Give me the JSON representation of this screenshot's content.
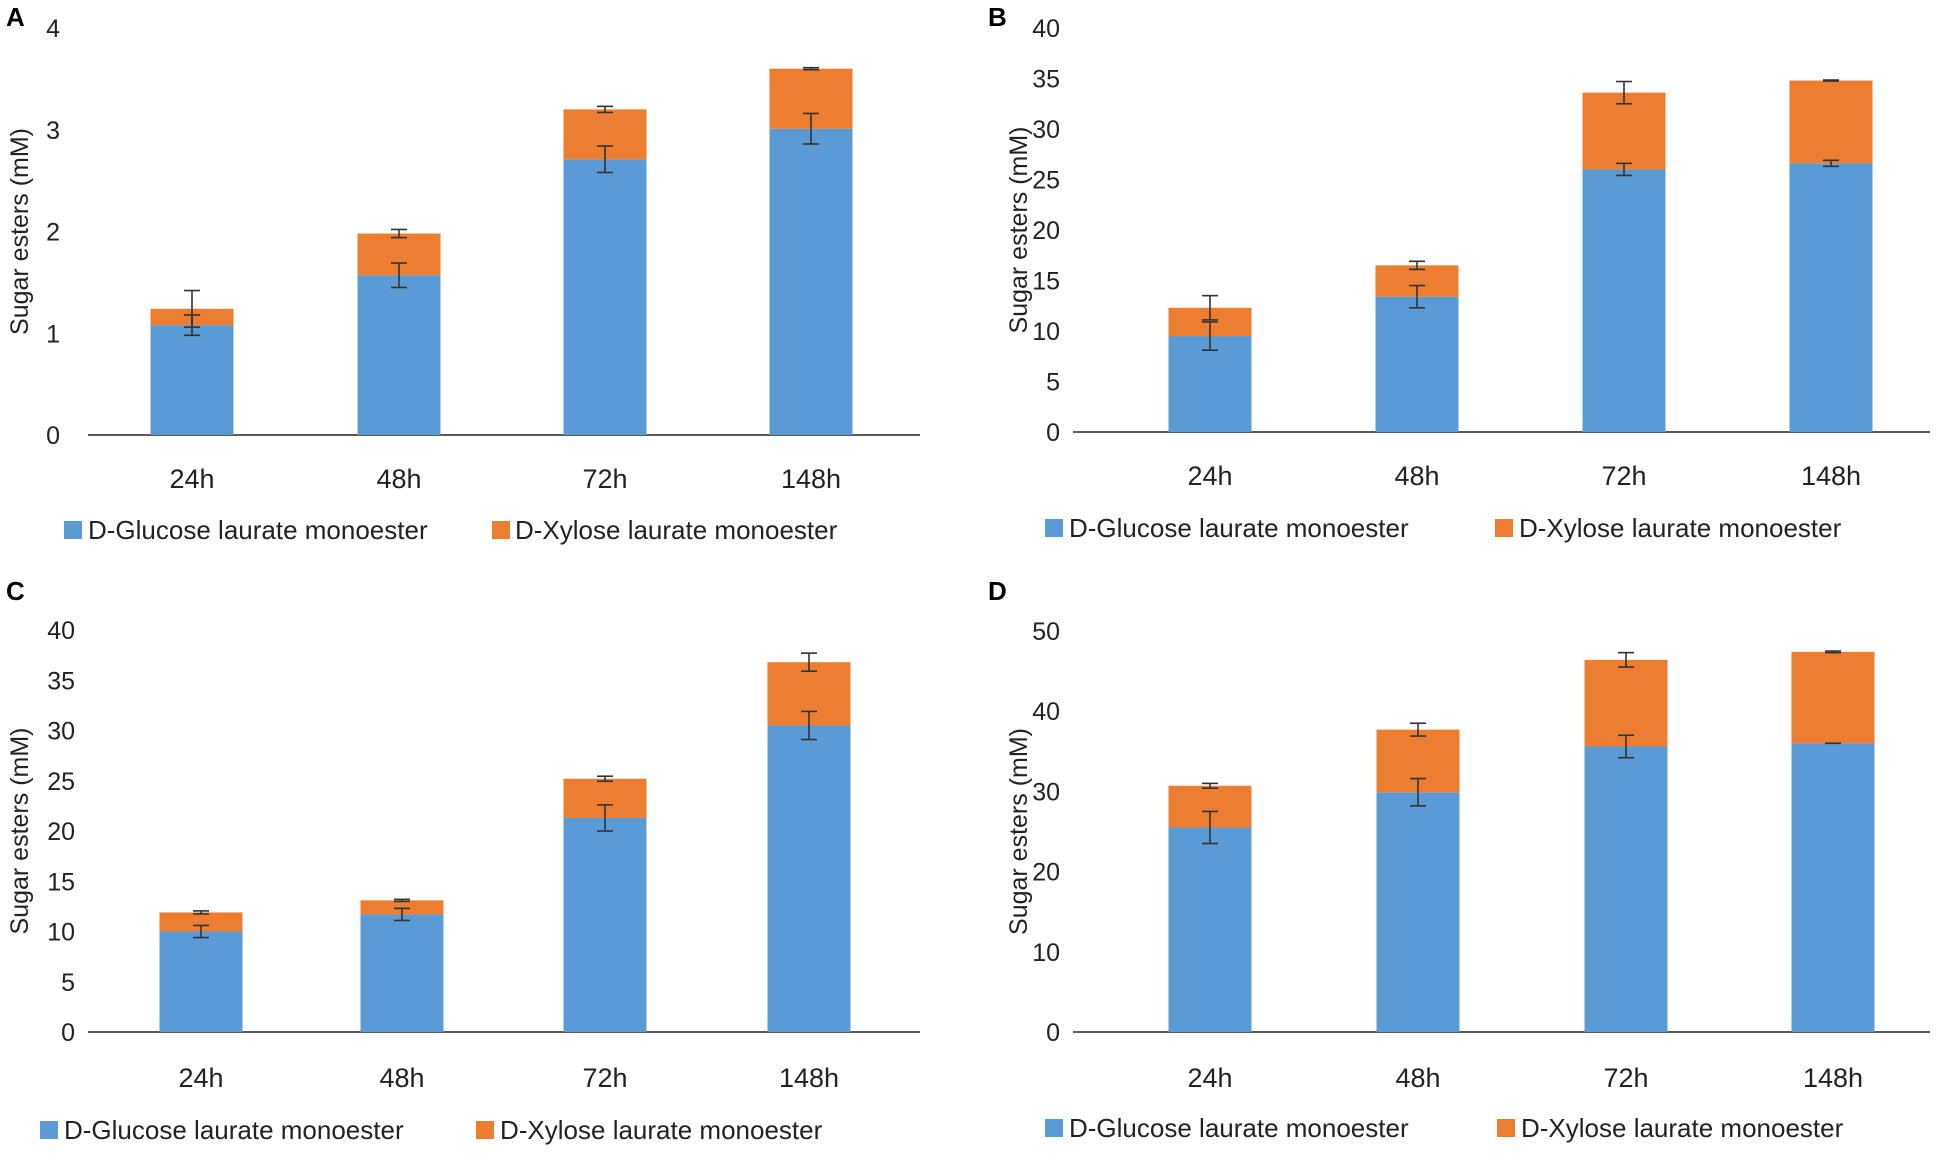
{
  "colors": {
    "glucose": "#5b9bd5",
    "xylose": "#ed7d31"
  },
  "chart_data": [
    {
      "panel": "A",
      "type": "bar",
      "stacked": true,
      "categories": [
        "24h",
        "48h",
        "72h",
        "148h"
      ],
      "ylabel": "Sugar esters (mM)",
      "ylim": [
        0,
        4
      ],
      "yticks": [
        "0",
        "1",
        "2",
        "3",
        "4"
      ],
      "legend": "bottom",
      "series": [
        {
          "name": "D-Glucose laurate monoester",
          "color_key": "glucose",
          "values": [
            1.08,
            1.57,
            2.71,
            3.01
          ],
          "errors": [
            0.1,
            0.12,
            0.13,
            0.15
          ]
        },
        {
          "name": "D-Xylose laurate monoester",
          "color_key": "xylose",
          "values": [
            0.16,
            0.41,
            0.49,
            0.59
          ],
          "errors": [
            0.18,
            0.04,
            0.03,
            0.01
          ]
        }
      ]
    },
    {
      "panel": "B",
      "type": "bar",
      "stacked": true,
      "categories": [
        "24h",
        "48h",
        "72h",
        "148h"
      ],
      "ylabel": "Sugar esters (mM)",
      "ylim": [
        0,
        40
      ],
      "yticks": [
        "0",
        "5",
        "10",
        "15",
        "20",
        "25",
        "30",
        "35",
        "40"
      ],
      "legend": "bottom",
      "series": [
        {
          "name": "D-Glucose laurate monoester",
          "color_key": "glucose",
          "values": [
            9.5,
            13.4,
            26.0,
            26.6
          ],
          "errors": [
            1.4,
            1.1,
            0.6,
            0.3
          ]
        },
        {
          "name": "D-Xylose laurate monoester",
          "color_key": "xylose",
          "values": [
            2.8,
            3.1,
            7.6,
            8.2
          ],
          "errors": [
            1.2,
            0.4,
            1.1,
            0.05
          ]
        }
      ]
    },
    {
      "panel": "C",
      "type": "bar",
      "stacked": true,
      "categories": [
        "24h",
        "48h",
        "72h",
        "148h"
      ],
      "ylabel": "Sugar esters (mM)",
      "ylim": [
        0,
        40
      ],
      "yticks": [
        "0",
        "5",
        "10",
        "15",
        "20",
        "25",
        "30",
        "35",
        "40"
      ],
      "legend": "bottom",
      "series": [
        {
          "name": "D-Glucose laurate monoester",
          "color_key": "glucose",
          "values": [
            10.0,
            11.7,
            21.3,
            30.5
          ],
          "errors": [
            0.6,
            0.6,
            1.3,
            1.4
          ]
        },
        {
          "name": "D-Xylose laurate monoester",
          "color_key": "xylose",
          "values": [
            1.9,
            1.4,
            3.9,
            6.3
          ],
          "errors": [
            0.15,
            0.1,
            0.25,
            0.9
          ]
        }
      ]
    },
    {
      "panel": "D",
      "type": "bar",
      "stacked": true,
      "categories": [
        "24h",
        "48h",
        "72h",
        "148h"
      ],
      "ylabel": "Sugar esters (mM)",
      "ylim": [
        0,
        50
      ],
      "yticks": [
        "0",
        "10",
        "20",
        "30",
        "40",
        "50"
      ],
      "legend": "bottom",
      "series": [
        {
          "name": "D-Glucose laurate monoester",
          "color_key": "glucose",
          "values": [
            25.5,
            29.9,
            35.6,
            36.0
          ],
          "errors": [
            2.0,
            1.7,
            1.4,
            0
          ]
        },
        {
          "name": "D-Xylose laurate monoester",
          "color_key": "xylose",
          "values": [
            5.2,
            7.8,
            10.8,
            11.4
          ],
          "errors": [
            0.3,
            0.8,
            0.9,
            0.1
          ]
        }
      ]
    }
  ]
}
